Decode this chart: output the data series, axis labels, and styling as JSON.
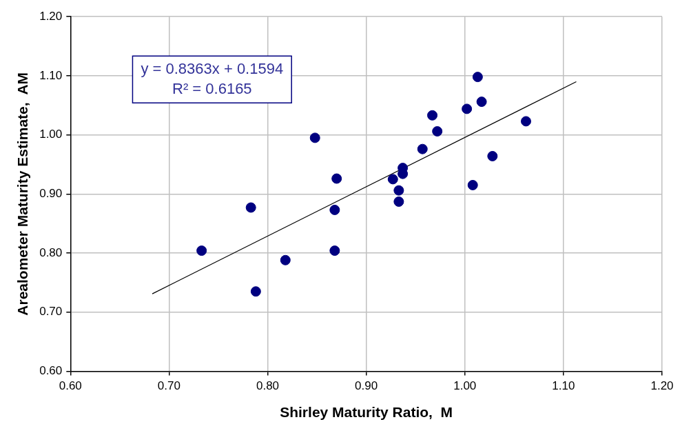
{
  "chart_data": {
    "type": "scatter",
    "xlabel": "Shirley Maturity Ratio,  M",
    "ylabel": "Arealometer Maturity Estimate,  AM",
    "xlim": [
      0.6,
      1.2
    ],
    "xticks": [
      {
        "value": 0.6,
        "label": "0.60"
      },
      {
        "value": 0.7,
        "label": "0.70"
      },
      {
        "value": 0.8,
        "label": "0.80"
      },
      {
        "value": 0.9,
        "label": "0.90"
      },
      {
        "value": 1.0,
        "label": "1.00"
      },
      {
        "value": 1.1,
        "label": "1.10"
      },
      {
        "value": 1.2,
        "label": "1.20"
      }
    ],
    "ylim": [
      0.6,
      1.2
    ],
    "yticks": [
      {
        "value": 0.6,
        "label": "0.60"
      },
      {
        "value": 0.7,
        "label": "0.70"
      },
      {
        "value": 0.8,
        "label": "0.80"
      },
      {
        "value": 0.9,
        "label": "0.90"
      },
      {
        "value": 1.0,
        "label": "1.00"
      },
      {
        "value": 1.1,
        "label": "1.10"
      },
      {
        "value": 1.2,
        "label": "1.20"
      }
    ],
    "grid": true,
    "legend": false,
    "marker": "circle",
    "annotations": [
      "y = 0.8363x + 0.1594",
      "R² = 0.6165"
    ],
    "series": [
      {
        "type": "scatter",
        "color": "#000080",
        "x": [
          0.733,
          0.783,
          0.788,
          0.818,
          0.848,
          0.87,
          0.868,
          0.868,
          0.927,
          0.933,
          0.933,
          0.937,
          0.937,
          0.957,
          0.967,
          0.972,
          1.002,
          1.013,
          1.017,
          1.008,
          1.028,
          1.062
        ],
        "values": [
          0.804,
          0.877,
          0.735,
          0.788,
          0.995,
          0.926,
          0.873,
          0.804,
          0.925,
          0.906,
          0.887,
          0.944,
          0.934,
          0.976,
          1.033,
          1.006,
          1.044,
          1.098,
          1.056,
          0.915,
          0.964,
          1.023
        ]
      },
      {
        "type": "line",
        "color": "#000000",
        "marker": "none",
        "x": [
          0.683,
          1.113
        ],
        "values": [
          0.731,
          1.09
        ]
      }
    ]
  }
}
